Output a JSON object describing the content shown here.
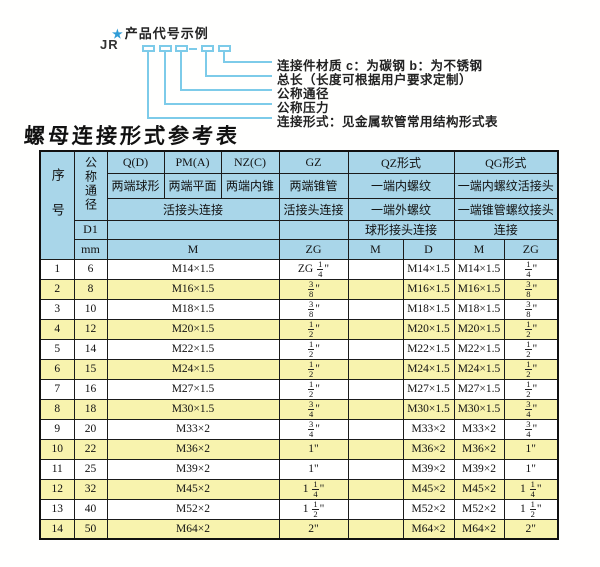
{
  "colors": {
    "header_bg": "#a9d6e9",
    "row_alt_bg": "#f8f3ae",
    "line_blue": "#7dcbe9",
    "star_blue": "#2f9cd6",
    "border": "#1b1b1b"
  },
  "diagram": {
    "star": "★",
    "title": "产品代号示例",
    "code_prefix": "JR",
    "labels": [
      "连接件材质  c：为碳钢  b：为不锈钢",
      "总长（长度可根据用户要求定制）",
      "公称通径",
      "公称压力",
      "连接形式：见金属软管常用结构形式表"
    ]
  },
  "table": {
    "title": "螺母连接形式参考表",
    "header": {
      "seq": "序号",
      "dn": "公称通径",
      "d1": "D1",
      "mm": "mm",
      "col_q": "Q(D)",
      "col_pm": "PM(A)",
      "col_nz": "NZ(C)",
      "col_gz": "GZ",
      "col_qz": "QZ形式",
      "col_qg": "QG形式",
      "q_desc": "两端球形",
      "pm_desc": "两端平面",
      "nz_desc": "两端内锥",
      "gz_desc": "两端锥管",
      "qz_desc1": "一端内螺纹",
      "qg_desc1": "一端内螺纹活接头",
      "union_conn": "活接头连接",
      "gz_conn": "活接头连接",
      "qz_desc2": "一端外螺纹",
      "qg_desc2": "一端锥管螺纹接头",
      "qz_conn": "球形接头连接",
      "qg_conn": "连接",
      "m_label": "M",
      "zg_label": "ZG",
      "qz_m": "M",
      "qz_d": "D",
      "qg_m": "M",
      "qg_zg": "ZG"
    },
    "rows": [
      [
        "1",
        "6",
        "M14×1.5",
        "ZG 1/4\"",
        "",
        "M14×1.5",
        "M14×1.5",
        "1/4\""
      ],
      [
        "2",
        "8",
        "M16×1.5",
        "3/8\"",
        "",
        "M16×1.5",
        "M16×1.5",
        "3/8\""
      ],
      [
        "3",
        "10",
        "M18×1.5",
        "3/8\"",
        "",
        "M18×1.5",
        "M18×1.5",
        "3/8\""
      ],
      [
        "4",
        "12",
        "M20×1.5",
        "1/2\"",
        "",
        "M20×1.5",
        "M20×1.5",
        "1/2\""
      ],
      [
        "5",
        "14",
        "M22×1.5",
        "1/2\"",
        "",
        "M22×1.5",
        "M22×1.5",
        "1/2\""
      ],
      [
        "6",
        "15",
        "M24×1.5",
        "1/2\"",
        "",
        "M24×1.5",
        "M24×1.5",
        "1/2\""
      ],
      [
        "7",
        "16",
        "M27×1.5",
        "1/2\"",
        "",
        "M27×1.5",
        "M27×1.5",
        "1/2\""
      ],
      [
        "8",
        "18",
        "M30×1.5",
        "3/4\"",
        "",
        "M30×1.5",
        "M30×1.5",
        "3/4\""
      ],
      [
        "9",
        "20",
        "M33×2",
        "3/4\"",
        "",
        "M33×2",
        "M33×2",
        "3/4\""
      ],
      [
        "10",
        "22",
        "M36×2",
        "1\"",
        "",
        "M36×2",
        "M36×2",
        "1\""
      ],
      [
        "11",
        "25",
        "M39×2",
        "1\"",
        "",
        "M39×2",
        "M39×2",
        "1\""
      ],
      [
        "12",
        "32",
        "M45×2",
        "1 1/4\"",
        "",
        "M45×2",
        "M45×2",
        "1 1/4\""
      ],
      [
        "13",
        "40",
        "M52×2",
        "1 1/2\"",
        "",
        "M52×2",
        "M52×2",
        "1 1/2\""
      ],
      [
        "14",
        "50",
        "M64×2",
        "2\"",
        "",
        "M64×2",
        "M64×2",
        "2\""
      ]
    ]
  }
}
